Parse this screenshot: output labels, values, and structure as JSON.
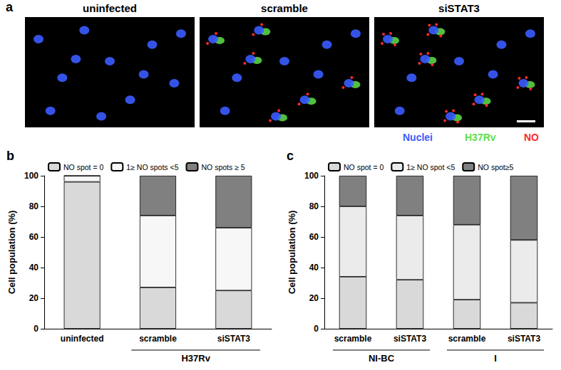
{
  "panel_a": {
    "label": "a",
    "images": [
      {
        "title": "uninfected"
      },
      {
        "title": "scramble"
      },
      {
        "title": "siSTAT3"
      }
    ],
    "legend": [
      {
        "text": "Nuclei",
        "color": "#3a5cff"
      },
      {
        "text": "H37Rv",
        "color": "#5fe04a"
      },
      {
        "text": "NO",
        "color": "#ff2a2a"
      }
    ]
  },
  "chart_data": [
    {
      "type": "bar",
      "title": "b",
      "stacked": true,
      "legend": "top",
      "categories": [
        "uninfected",
        "scramble",
        "siSTAT3"
      ],
      "annotations": [
        {
          "text": "H37Rv",
          "categories": [
            "scramble",
            "siSTAT3"
          ]
        }
      ],
      "y_label": "Cell population (%)",
      "ylim": [
        0,
        100
      ],
      "yticks": [
        0,
        20,
        40,
        60,
        80,
        100
      ],
      "series": [
        {
          "name": "NO spot = 0",
          "color": "#d9d9d9",
          "values": [
            96,
            27,
            25
          ]
        },
        {
          "name": "1≥ NO spots <5",
          "color": "#f7f7f7",
          "values": [
            4,
            47,
            41
          ]
        },
        {
          "name": "NO spots ≥ 5",
          "color": "#808080",
          "values": [
            0,
            26,
            34
          ]
        }
      ]
    },
    {
      "type": "bar",
      "title": "c",
      "stacked": true,
      "legend": "top",
      "categories": [
        "scramble",
        "siSTAT3",
        "scramble",
        "siSTAT3"
      ],
      "annotations": [
        {
          "text": "NI-BC",
          "categories": [
            "scramble",
            "siSTAT3"
          ]
        },
        {
          "text": "I",
          "categories": [
            "scramble",
            "siSTAT3"
          ]
        }
      ],
      "y_label": "Cell population (%)",
      "ylim": [
        0,
        100
      ],
      "yticks": [
        0,
        20,
        40,
        60,
        80,
        100
      ],
      "series": [
        {
          "name": "NO spot = 0",
          "color": "#d9d9d9",
          "values": [
            34,
            32,
            19,
            17
          ]
        },
        {
          "name": "1≥ NO spot <5",
          "color": "#ebebeb",
          "values": [
            46,
            42,
            49,
            41
          ]
        },
        {
          "name": "NO spot≥5",
          "color": "#808080",
          "values": [
            20,
            26,
            32,
            42
          ]
        }
      ]
    }
  ]
}
